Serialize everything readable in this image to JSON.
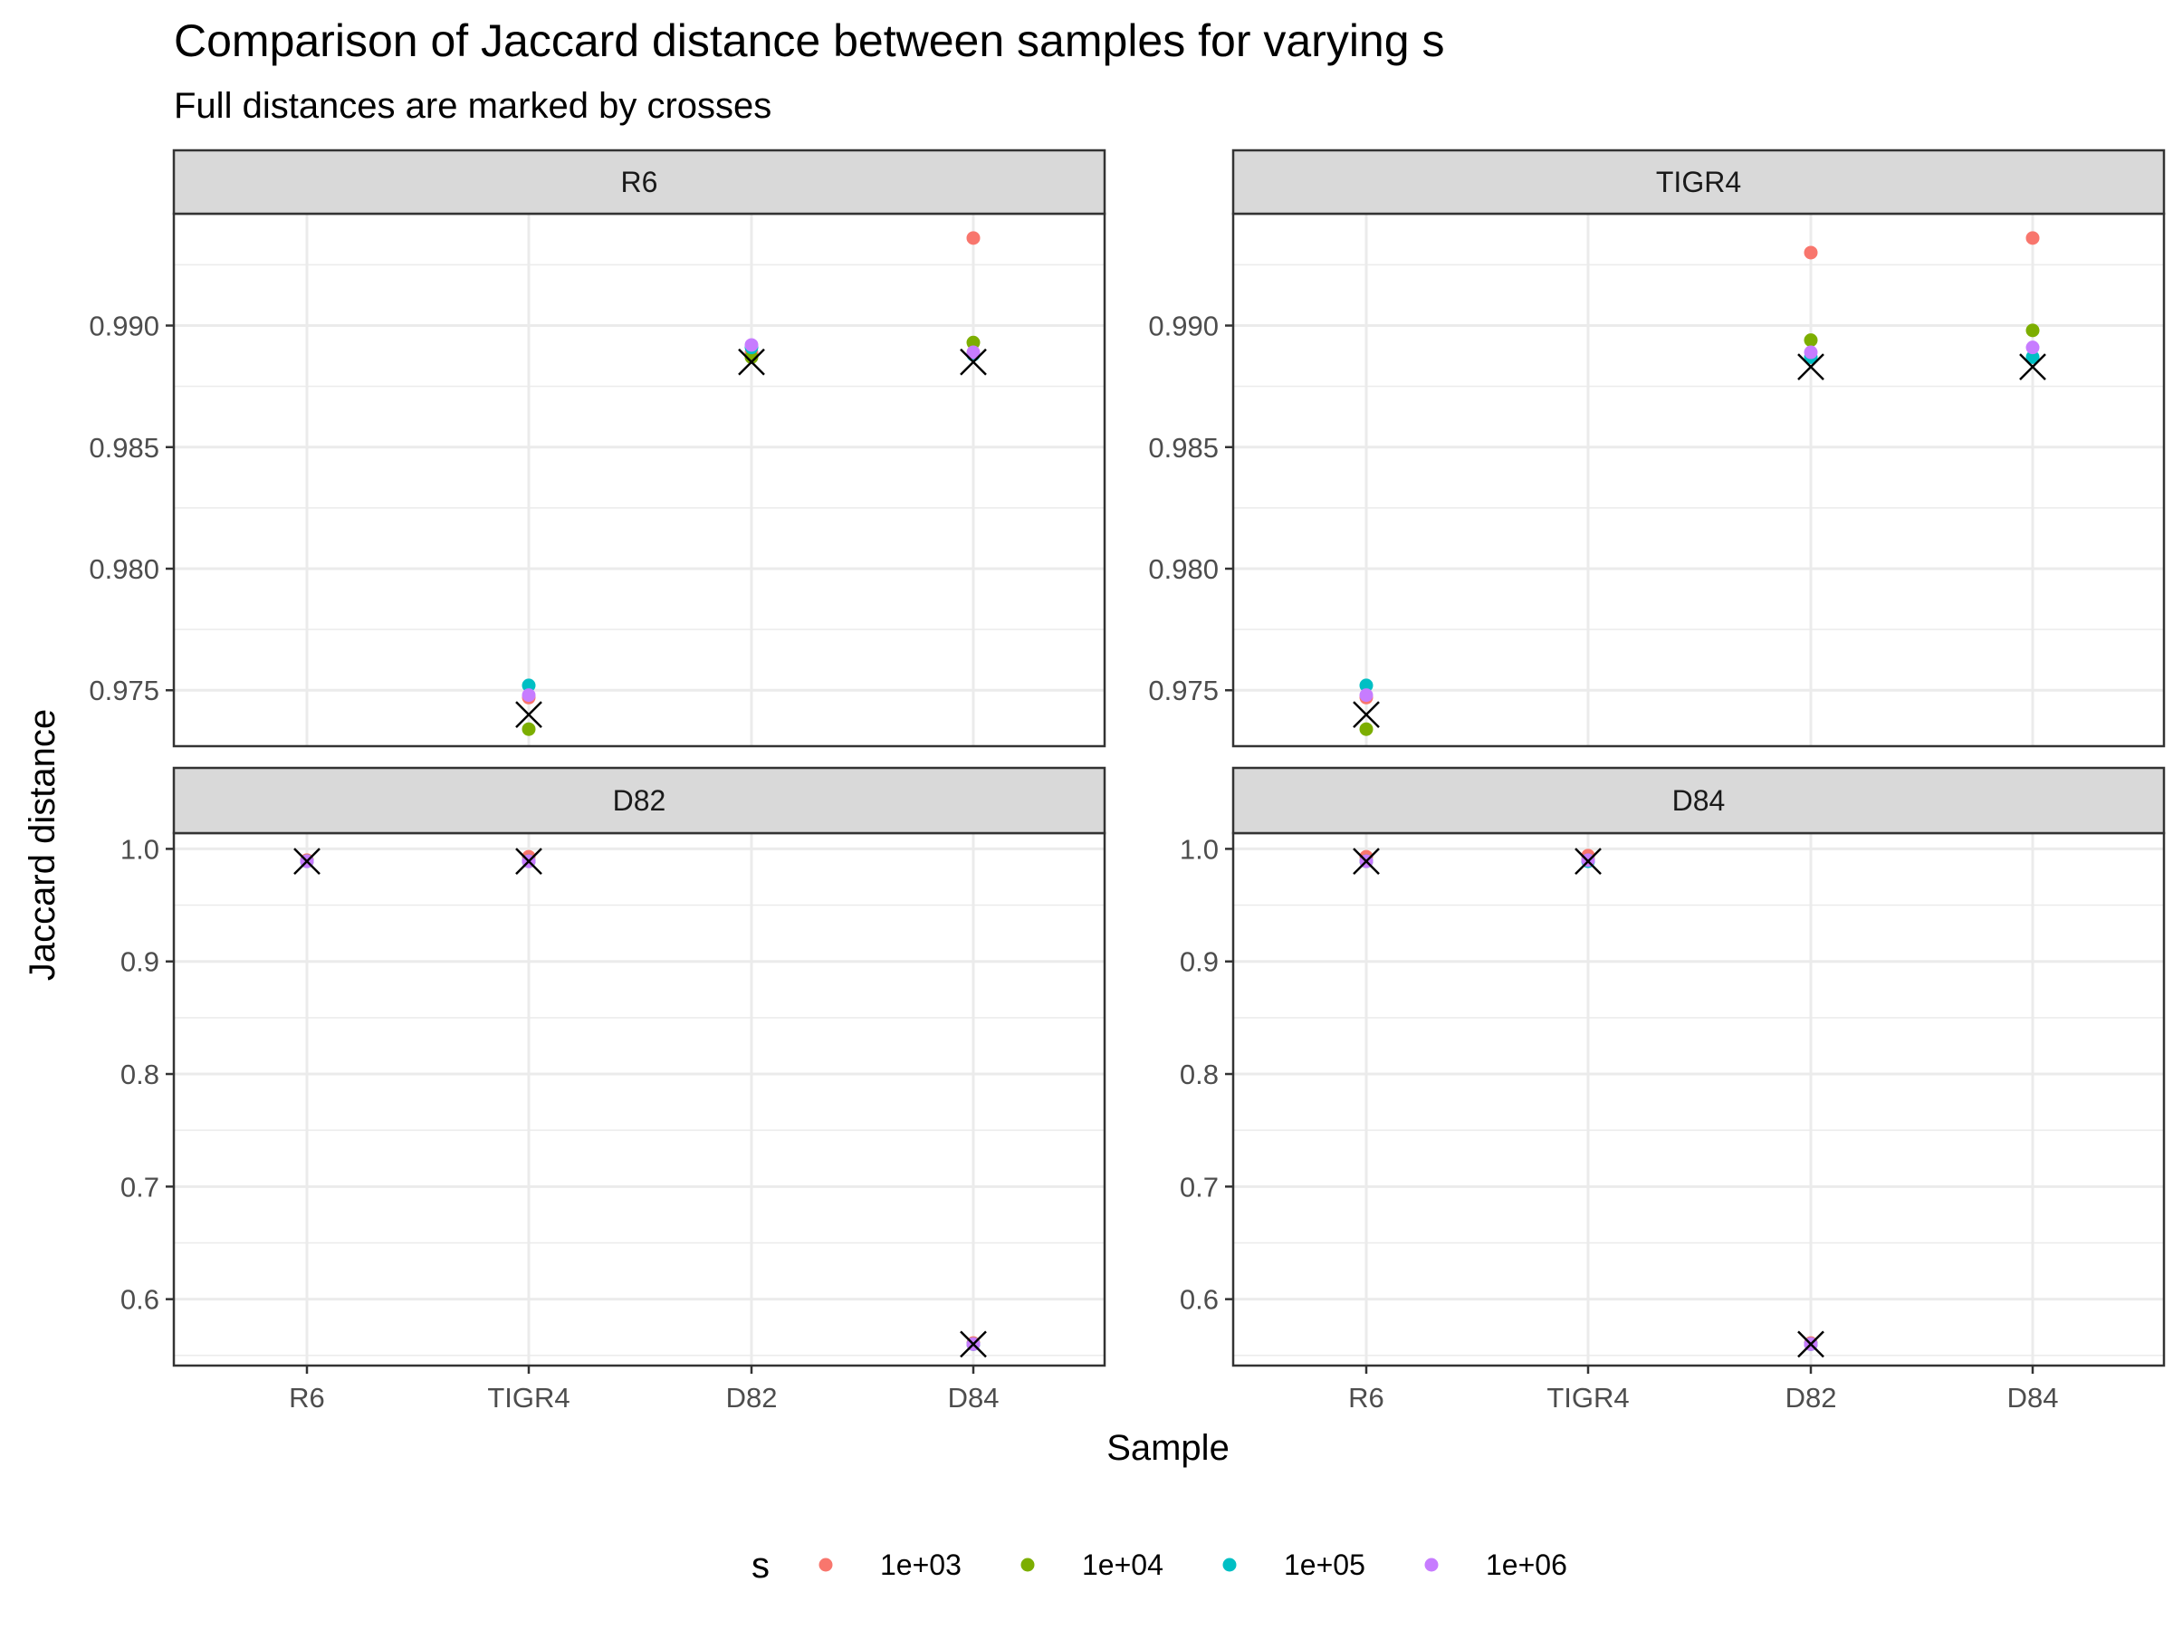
{
  "chart_data": {
    "type": "scatter",
    "title": "Comparison of Jaccard distance between samples for varying s",
    "subtitle": "Full distances are marked by crosses",
    "xlabel": "Sample",
    "ylabel": "Jaccard distance",
    "categories": [
      "R6",
      "TIGR4",
      "D82",
      "D84"
    ],
    "grid": true,
    "legend": {
      "title": "s",
      "position": "bottom",
      "entries": [
        {
          "label": "1e+03",
          "color": "#F8766D"
        },
        {
          "label": "1e+04",
          "color": "#7CAE00"
        },
        {
          "label": "1e+05",
          "color": "#00BFC4"
        },
        {
          "label": "1e+06",
          "color": "#C77CFF"
        }
      ]
    },
    "cross_color": "#000000",
    "panels": [
      {
        "strip": "R6",
        "ylim": [
          0.9727,
          0.9946
        ],
        "yticks": [
          0.975,
          0.98,
          0.985,
          0.99
        ],
        "ytick_labels": [
          "0.975",
          "0.980",
          "0.985",
          "0.990"
        ],
        "points": [
          {
            "x": "TIGR4",
            "s": "1e+03",
            "y": 0.9747
          },
          {
            "x": "TIGR4",
            "s": "1e+04",
            "y": 0.9734
          },
          {
            "x": "TIGR4",
            "s": "1e+05",
            "y": 0.9752
          },
          {
            "x": "TIGR4",
            "s": "1e+06",
            "y": 0.9748
          },
          {
            "x": "D82",
            "s": "1e+03",
            "y": 0.9889
          },
          {
            "x": "D82",
            "s": "1e+04",
            "y": 0.9887
          },
          {
            "x": "D82",
            "s": "1e+05",
            "y": 0.9891
          },
          {
            "x": "D82",
            "s": "1e+06",
            "y": 0.9892
          },
          {
            "x": "D84",
            "s": "1e+03",
            "y": 0.9936
          },
          {
            "x": "D84",
            "s": "1e+04",
            "y": 0.9893
          },
          {
            "x": "D84",
            "s": "1e+05",
            "y": 0.9888
          },
          {
            "x": "D84",
            "s": "1e+06",
            "y": 0.9889
          }
        ],
        "full": [
          {
            "x": "TIGR4",
            "y": 0.974
          },
          {
            "x": "D82",
            "y": 0.9885
          },
          {
            "x": "D84",
            "y": 0.9885
          }
        ]
      },
      {
        "strip": "TIGR4",
        "ylim": [
          0.9727,
          0.9946
        ],
        "yticks": [
          0.975,
          0.98,
          0.985,
          0.99
        ],
        "ytick_labels": [
          "0.975",
          "0.980",
          "0.985",
          "0.990"
        ],
        "points": [
          {
            "x": "R6",
            "s": "1e+03",
            "y": 0.9747
          },
          {
            "x": "R6",
            "s": "1e+04",
            "y": 0.9734
          },
          {
            "x": "R6",
            "s": "1e+05",
            "y": 0.9752
          },
          {
            "x": "R6",
            "s": "1e+06",
            "y": 0.9748
          },
          {
            "x": "D82",
            "s": "1e+03",
            "y": 0.993
          },
          {
            "x": "D82",
            "s": "1e+04",
            "y": 0.9894
          },
          {
            "x": "D82",
            "s": "1e+05",
            "y": 0.9887
          },
          {
            "x": "D82",
            "s": "1e+06",
            "y": 0.9889
          },
          {
            "x": "D84",
            "s": "1e+03",
            "y": 0.9936
          },
          {
            "x": "D84",
            "s": "1e+04",
            "y": 0.9898
          },
          {
            "x": "D84",
            "s": "1e+05",
            "y": 0.9887
          },
          {
            "x": "D84",
            "s": "1e+06",
            "y": 0.9891
          }
        ],
        "full": [
          {
            "x": "R6",
            "y": 0.974
          },
          {
            "x": "D82",
            "y": 0.9883
          },
          {
            "x": "D84",
            "y": 0.9883
          }
        ]
      },
      {
        "strip": "D82",
        "ylim": [
          0.541,
          1.014
        ],
        "yticks": [
          0.6,
          0.7,
          0.8,
          0.9,
          1.0
        ],
        "ytick_labels": [
          "0.6",
          "0.7",
          "0.8",
          "0.9",
          "1.0"
        ],
        "points": [
          {
            "x": "R6",
            "s": "1e+03",
            "y": 0.99
          },
          {
            "x": "R6",
            "s": "1e+04",
            "y": 0.989
          },
          {
            "x": "R6",
            "s": "1e+05",
            "y": 0.989
          },
          {
            "x": "R6",
            "s": "1e+06",
            "y": 0.989
          },
          {
            "x": "TIGR4",
            "s": "1e+03",
            "y": 0.993
          },
          {
            "x": "TIGR4",
            "s": "1e+04",
            "y": 0.989
          },
          {
            "x": "TIGR4",
            "s": "1e+05",
            "y": 0.989
          },
          {
            "x": "TIGR4",
            "s": "1e+06",
            "y": 0.989
          },
          {
            "x": "D84",
            "s": "1e+03",
            "y": 0.561
          },
          {
            "x": "D84",
            "s": "1e+04",
            "y": 0.56
          },
          {
            "x": "D84",
            "s": "1e+05",
            "y": 0.56
          },
          {
            "x": "D84",
            "s": "1e+06",
            "y": 0.56
          }
        ],
        "full": [
          {
            "x": "R6",
            "y": 0.989
          },
          {
            "x": "TIGR4",
            "y": 0.989
          },
          {
            "x": "D84",
            "y": 0.56
          }
        ]
      },
      {
        "strip": "D84",
        "ylim": [
          0.541,
          1.014
        ],
        "yticks": [
          0.6,
          0.7,
          0.8,
          0.9,
          1.0
        ],
        "ytick_labels": [
          "0.6",
          "0.7",
          "0.8",
          "0.9",
          "1.0"
        ],
        "points": [
          {
            "x": "R6",
            "s": "1e+03",
            "y": 0.993
          },
          {
            "x": "R6",
            "s": "1e+04",
            "y": 0.989
          },
          {
            "x": "R6",
            "s": "1e+05",
            "y": 0.989
          },
          {
            "x": "R6",
            "s": "1e+06",
            "y": 0.989
          },
          {
            "x": "TIGR4",
            "s": "1e+03",
            "y": 0.994
          },
          {
            "x": "TIGR4",
            "s": "1e+04",
            "y": 0.99
          },
          {
            "x": "TIGR4",
            "s": "1e+05",
            "y": 0.989
          },
          {
            "x": "TIGR4",
            "s": "1e+06",
            "y": 0.99
          },
          {
            "x": "D82",
            "s": "1e+03",
            "y": 0.561
          },
          {
            "x": "D82",
            "s": "1e+04",
            "y": 0.56
          },
          {
            "x": "D82",
            "s": "1e+05",
            "y": 0.56
          },
          {
            "x": "D82",
            "s": "1e+06",
            "y": 0.56
          }
        ],
        "full": [
          {
            "x": "R6",
            "y": 0.989
          },
          {
            "x": "TIGR4",
            "y": 0.989
          },
          {
            "x": "D82",
            "y": 0.56
          }
        ]
      }
    ]
  }
}
